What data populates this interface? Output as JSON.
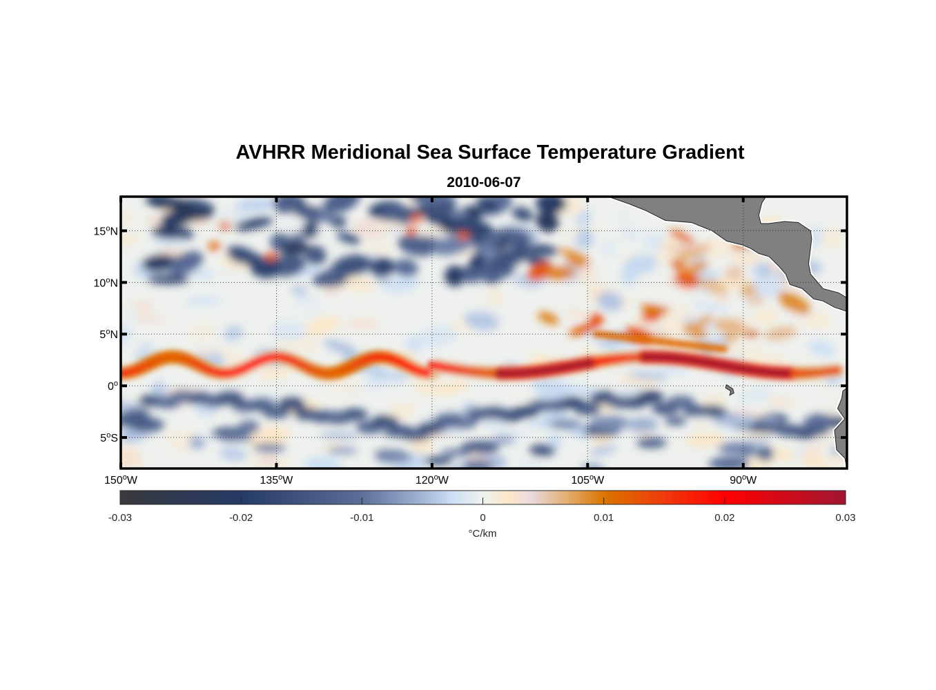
{
  "chart_data": {
    "type": "heatmap",
    "title": "AVHRR Meridional Sea Surface Temperature Gradient",
    "subtitle": "2010-06-07",
    "projection": "equirectangular",
    "lon_range": [
      -150,
      -80
    ],
    "lat_range": [
      -8,
      18.3
    ],
    "x_ticks": [
      {
        "value": -150,
        "label": "150",
        "suffix": "W"
      },
      {
        "value": -135,
        "label": "135",
        "suffix": "W"
      },
      {
        "value": -120,
        "label": "120",
        "suffix": "W"
      },
      {
        "value": -105,
        "label": "105",
        "suffix": "W"
      },
      {
        "value": -90,
        "label": "90",
        "suffix": "W"
      }
    ],
    "y_ticks": [
      {
        "value": 15,
        "label": "15",
        "suffix": "N"
      },
      {
        "value": 10,
        "label": "10",
        "suffix": "N"
      },
      {
        "value": 5,
        "label": "5",
        "suffix": "N"
      },
      {
        "value": 0,
        "label": "0",
        "suffix": ""
      },
      {
        "value": -5,
        "label": "5",
        "suffix": "S"
      }
    ],
    "grid": "dotted",
    "colorbar": {
      "label": "°C/km",
      "range": [
        -0.03,
        0.03
      ],
      "ticks": [
        -0.03,
        -0.02,
        -0.01,
        0,
        0.01,
        0.02,
        0.03
      ],
      "tick_labels": [
        "-0.03",
        "-0.02",
        "-0.01",
        "0",
        "0.01",
        "0.02",
        "0.03"
      ],
      "placement": "bottom",
      "colors": [
        {
          "v": -0.03,
          "c": "#3a3a3e"
        },
        {
          "v": -0.02,
          "c": "#253a66"
        },
        {
          "v": -0.01,
          "c": "#5c6f98"
        },
        {
          "v": -0.005,
          "c": "#a4b6d6"
        },
        {
          "v": -0.0025,
          "c": "#cde0f5"
        },
        {
          "v": 0,
          "c": "#eef1ee"
        },
        {
          "v": 0.002,
          "c": "#fbe7c8"
        },
        {
          "v": 0.004,
          "c": "#ead9dd"
        },
        {
          "v": 0.007,
          "c": "#e3ad6e"
        },
        {
          "v": 0.01,
          "c": "#dc7500"
        },
        {
          "v": 0.015,
          "c": "#ef3a0a"
        },
        {
          "v": 0.02,
          "c": "#ff0000"
        },
        {
          "v": 0.03,
          "c": "#a01632"
        }
      ]
    },
    "features": {
      "land_color": "#808080",
      "equatorial_front": "Strong positive gradient band (0.01–0.03 °C/km) along ~0–3°N, wave-like between 150°W and 120°W, most intense (~0.03) near 110°W and 95–90°W",
      "southern_band": "Negative gradient band (~-0.01 to -0.02) just south of the equator, 0–4°S",
      "north_field": "Patchy negative (~-0.02) and weak positive eddies between 10°N and 18°N west of 110°W; positive patches east of 110°W",
      "land": "Central America / Mexico coast in upper right; South America coast at right edge near 0–8°S; Galapagos near 91°W, 0°"
    }
  }
}
